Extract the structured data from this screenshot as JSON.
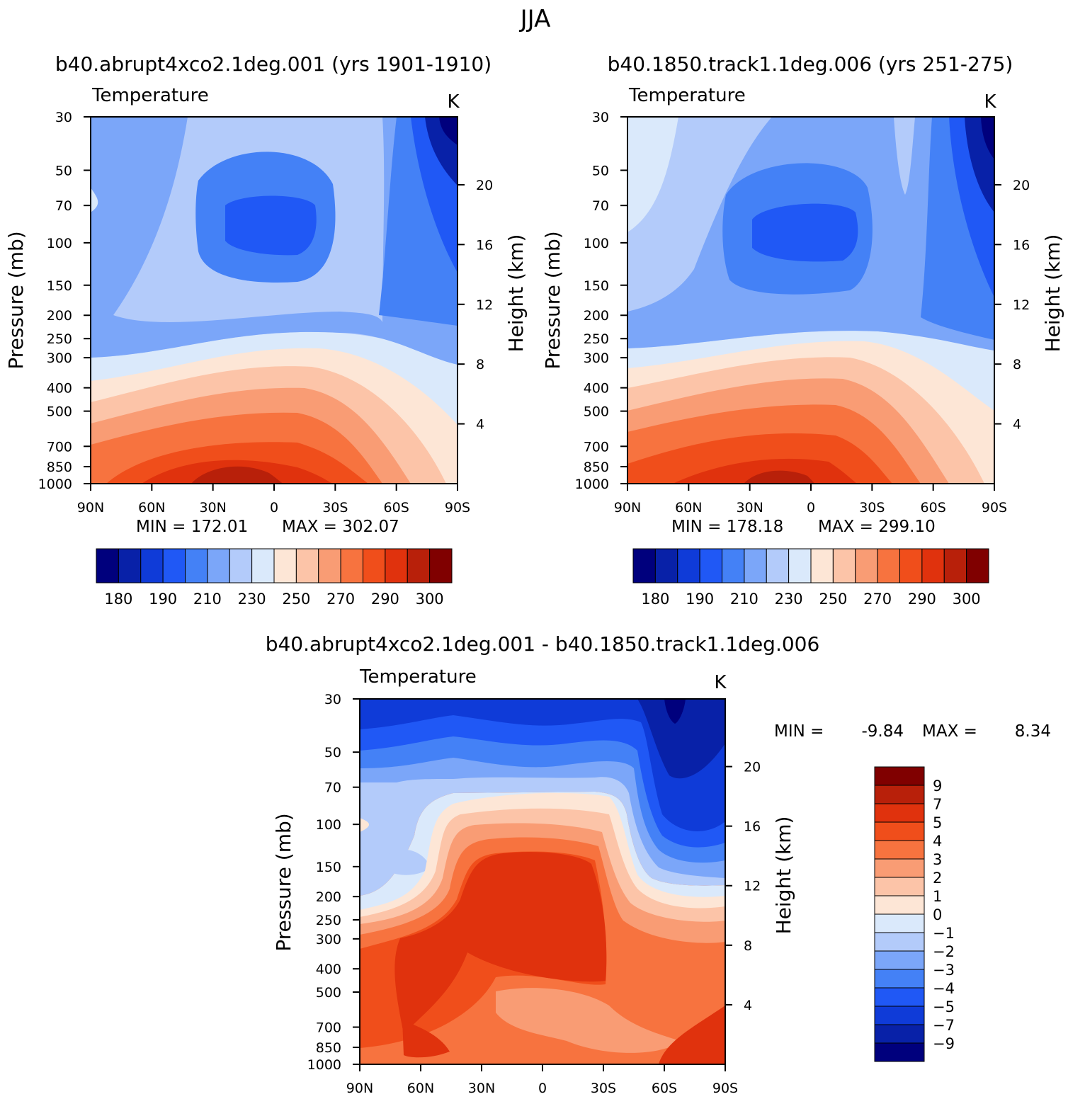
{
  "figure_title": "JJA",
  "chart_data": [
    {
      "type": "heatmap",
      "id": "left",
      "title": "b40.abrupt4xco2.1deg.001 (yrs 1901-1910)",
      "variable": "Temperature",
      "units": "K",
      "ylabel": "Pressure (mb)",
      "y2label": "Height (km)",
      "x_ticks": [
        "90N",
        "60N",
        "30N",
        "0",
        "30S",
        "60S",
        "90S"
      ],
      "y_ticks": [
        30,
        50,
        70,
        100,
        150,
        200,
        250,
        300,
        400,
        500,
        700,
        850,
        1000
      ],
      "y2_ticks": [
        4,
        8,
        12,
        16,
        20
      ],
      "xlim": [
        90,
        -90
      ],
      "ylim": [
        1000,
        30
      ],
      "min_label": "MIN = 172.01",
      "max_label": "MAX = 302.07",
      "colorbar_labels": [
        "180",
        "190",
        "210",
        "230",
        "250",
        "270",
        "290",
        "300"
      ],
      "colorbar_orientation": "horizontal"
    },
    {
      "type": "heatmap",
      "id": "right",
      "title": "b40.1850.track1.1deg.006 (yrs 251-275)",
      "variable": "Temperature",
      "units": "K",
      "ylabel": "Pressure (mb)",
      "y2label": "Height (km)",
      "x_ticks": [
        "90N",
        "60N",
        "30N",
        "0",
        "30S",
        "60S",
        "90S"
      ],
      "y_ticks": [
        30,
        50,
        70,
        100,
        150,
        200,
        250,
        300,
        400,
        500,
        700,
        850,
        1000
      ],
      "y2_ticks": [
        4,
        8,
        12,
        16,
        20
      ],
      "xlim": [
        90,
        -90
      ],
      "ylim": [
        1000,
        30
      ],
      "min_label": "MIN = 178.18",
      "max_label": "MAX = 299.10",
      "colorbar_labels": [
        "180",
        "190",
        "210",
        "230",
        "250",
        "270",
        "290",
        "300"
      ],
      "colorbar_orientation": "horizontal"
    },
    {
      "type": "heatmap",
      "id": "diff",
      "title": "b40.abrupt4xco2.1deg.001 - b40.1850.track1.1deg.006",
      "variable": "Temperature",
      "units": "K",
      "ylabel": "Pressure (mb)",
      "y2label": "Height (km)",
      "x_ticks": [
        "90N",
        "60N",
        "30N",
        "0",
        "30S",
        "60S",
        "90S"
      ],
      "y_ticks": [
        30,
        50,
        70,
        100,
        150,
        200,
        250,
        300,
        400,
        500,
        700,
        850,
        1000
      ],
      "y2_ticks": [
        4,
        8,
        12,
        16,
        20
      ],
      "xlim": [
        90,
        -90
      ],
      "ylim": [
        1000,
        30
      ],
      "min_label": "MIN =",
      "min_value": "-9.84",
      "max_label": "MAX =",
      "max_value": "8.34",
      "colorbar_labels": [
        "9",
        "7",
        "5",
        "4",
        "3",
        "2",
        "1",
        "0",
        "-1",
        "-2",
        "-3",
        "-4",
        "-5",
        "-7",
        "-9"
      ],
      "colorbar_orientation": "vertical"
    }
  ],
  "palette": {
    "main": [
      "#00007d",
      "#0821a8",
      "#0f3bd8",
      "#2058f5",
      "#4481f6",
      "#7ba6f9",
      "#b3cbfa",
      "#dae9fb",
      "#fde6d6",
      "#fcc4a8",
      "#f99c74",
      "#f7733f",
      "#f04e1b",
      "#e0320d",
      "#b8200a",
      "#800000"
    ],
    "diff": [
      "#800000",
      "#b8200a",
      "#e0320d",
      "#f04e1b",
      "#f7733f",
      "#f99c74",
      "#fcc4a8",
      "#fde6d6",
      "#dae9fb",
      "#b3cbfa",
      "#7ba6f9",
      "#4481f6",
      "#2058f5",
      "#0f3bd8",
      "#0821a8",
      "#00007d"
    ]
  }
}
